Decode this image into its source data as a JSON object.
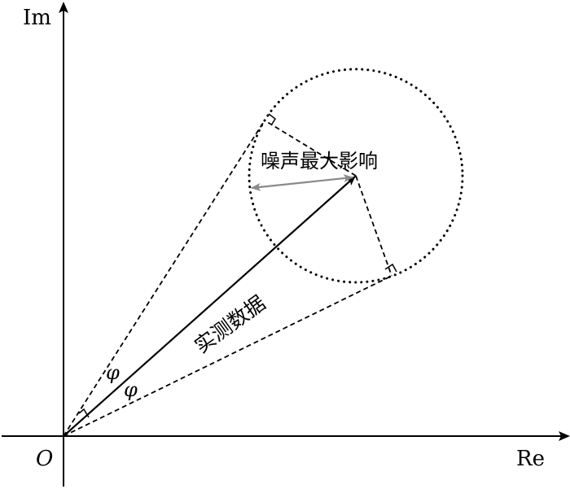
{
  "axes": {
    "x_label": "Re",
    "y_label": "Im",
    "origin_label": "O"
  },
  "labels": {
    "measured_data": "实测数据",
    "noise_max_effect": "噪声最大影响",
    "angle_upper": "φ",
    "angle_lower": "φ"
  },
  "colors": {
    "main": "#000000",
    "noise_arrow": "#8a8a8a"
  }
}
